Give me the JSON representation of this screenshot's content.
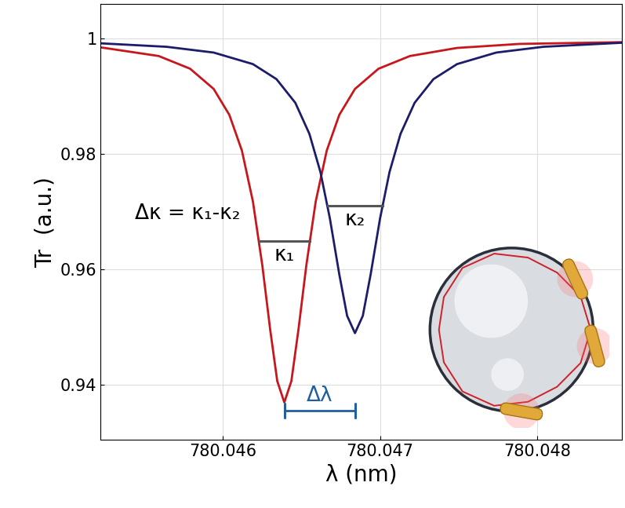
{
  "chart_data": {
    "type": "line",
    "xlabel": "λ (nm)",
    "ylabel": "Tr  (a.u.)",
    "xlim": [
      780.04522,
      780.04854
    ],
    "ylim": [
      0.9305,
      1.006
    ],
    "xticks": [
      780.046,
      780.047,
      780.048
    ],
    "yticks": [
      0.94,
      0.96,
      0.98,
      1
    ],
    "grid": true,
    "series": [
      {
        "color": "#c8161d",
        "x": [
          780.04522,
          780.04559,
          780.04579,
          780.04594,
          780.04604,
          780.04612,
          780.04619,
          780.04625,
          780.0463,
          780.046345,
          780.04639,
          780.046435,
          780.04648,
          780.04653,
          780.04659,
          780.04666,
          780.04674,
          780.04684,
          780.04699,
          780.04719,
          780.04749,
          780.04789,
          780.04854
        ],
        "values": [
          0.9985,
          0.997,
          0.9948,
          0.9913,
          0.9868,
          0.9806,
          0.9718,
          0.9607,
          0.9496,
          0.9407,
          0.937,
          0.9407,
          0.9496,
          0.9607,
          0.9718,
          0.9806,
          0.9868,
          0.9913,
          0.9948,
          0.997,
          0.9984,
          0.9991,
          0.9994
        ]
      },
      {
        "color": "#1c1c6b",
        "x": [
          780.04522,
          780.04564,
          780.04594,
          780.04619,
          780.04634,
          780.04646,
          780.04655,
          780.04662,
          780.04668,
          780.04674,
          780.04679,
          780.04684,
          780.04689,
          780.04694,
          780.047,
          780.04706,
          780.04713,
          780.04722,
          780.04734,
          780.04749,
          780.04774,
          780.04804,
          780.04854
        ],
        "values": [
          0.9992,
          0.9986,
          0.9976,
          0.9956,
          0.993,
          0.9889,
          0.9835,
          0.9769,
          0.9689,
          0.9592,
          0.952,
          0.949,
          0.952,
          0.9592,
          0.9689,
          0.9769,
          0.9835,
          0.9889,
          0.993,
          0.9956,
          0.9976,
          0.9986,
          0.9993
        ]
      }
    ],
    "annotation": "Δκ = κ₁-κ₂",
    "widths": [
      {
        "label": "κ₁",
        "x": [
          780.04623,
          780.04655
        ],
        "y": 0.965
      },
      {
        "label": "κ₂",
        "x": [
          780.046665,
          780.047015
        ],
        "y": 0.9711
      }
    ],
    "shift": {
      "label": "Δλ",
      "x": [
        780.04639,
        780.04684
      ],
      "y": 0.9356,
      "color": "#1f5fa0"
    }
  }
}
